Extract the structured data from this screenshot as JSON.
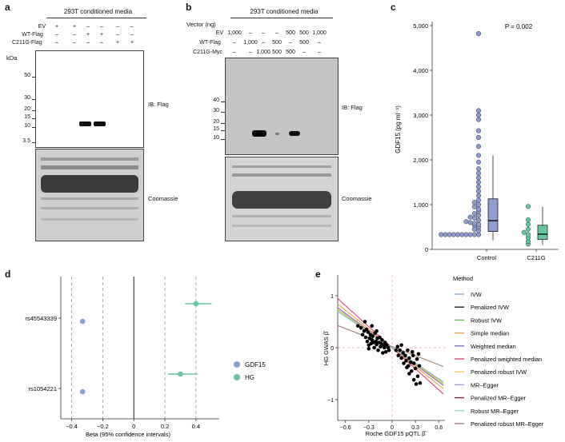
{
  "panels": {
    "a": {
      "label": "a",
      "header": "293T conditioned media",
      "row_labels": [
        "EV",
        "WT-Flag",
        "C211G-Flag"
      ],
      "row_values": [
        [
          "+",
          "+",
          "–",
          "–",
          "–",
          "–"
        ],
        [
          "–",
          "–",
          "+",
          "+",
          "–",
          "–"
        ],
        [
          "–",
          "–",
          "–",
          "–",
          "+",
          "+"
        ]
      ],
      "kda_title": "kDa",
      "kda_ticks": [
        "50",
        "30",
        "20",
        "15",
        "10",
        "3.5"
      ],
      "ib_label": "IB: Flag",
      "stain_label": "Coomassie"
    },
    "b": {
      "label": "b",
      "header": "293T conditioned media",
      "vector_label": "Vector (ng)",
      "row_labels": [
        "EV",
        "WT-Flag",
        "C211G-Myc"
      ],
      "row_values": [
        [
          "1,000",
          "–",
          "–",
          "–",
          "500",
          "500",
          "1,000"
        ],
        [
          "–",
          "1,000",
          "–",
          "500",
          "–",
          "500",
          "–"
        ],
        [
          "–",
          "–",
          "1,000",
          "500",
          "500",
          "–",
          "–"
        ]
      ],
      "kda_ticks": [
        "40",
        "30",
        "20",
        "15",
        "10"
      ],
      "ib_label": "IB: Flag",
      "stain_label": "Coomassie"
    },
    "c": {
      "label": "c",
      "p_value": "P = 0.002",
      "ylabel": "GDF15 (pg ml⁻¹)"
    },
    "d": {
      "label": "d",
      "xlabel": "Beta (95% confidence intervals)",
      "legend": [
        {
          "name": "GDF15",
          "color": "#8e9dd0"
        },
        {
          "name": "HG",
          "color": "#66c8a0"
        }
      ]
    },
    "e": {
      "label": "e",
      "xlabel": "Roche GDF15 pQTL β̂",
      "ylabel": "HG GWAS β̂",
      "legend_title": "Method",
      "methods": [
        {
          "name": "IVW",
          "color": "#7fb1dc"
        },
        {
          "name": "Penalized IVW",
          "color": "#222222"
        },
        {
          "name": "Robust IVW",
          "color": "#66bb55"
        },
        {
          "name": "Simple median",
          "color": "#e8a048"
        },
        {
          "name": "Weighted median",
          "color": "#8c6bbf"
        },
        {
          "name": "Penalized weighted median",
          "color": "#e8407a"
        },
        {
          "name": "Penalized robust IVW",
          "color": "#f0d050"
        },
        {
          "name": "MR–Egger",
          "color": "#9aa6d6"
        },
        {
          "name": "Penalized MR–Egger",
          "color": "#8a2a3a"
        },
        {
          "name": "Robust MR–Egger",
          "color": "#88ddd0"
        },
        {
          "name": "Penalized robust MR–Egger",
          "color": "#a08070"
        }
      ]
    }
  },
  "chart_data": [
    {
      "type": "box",
      "title": "",
      "ylabel": "GDF15 (pg ml⁻¹)",
      "xlabel": "",
      "ylim": [
        0,
        5000
      ],
      "yticks": [
        "0",
        "1,000",
        "2,000",
        "3,000",
        "4,000",
        "5,000"
      ],
      "annotation": "P = 0.002",
      "categories": [
        "Control",
        "C211G"
      ],
      "series": [
        {
          "name": "Control",
          "color": "#8e9dd0",
          "q1": 400,
          "median": 640,
          "q3": 1130,
          "whisker_low": 200,
          "whisker_high": 2100,
          "points": [
            330,
            330,
            330,
            330,
            330,
            330,
            330,
            330,
            330,
            330,
            420,
            450,
            500,
            540,
            560,
            580,
            600,
            620,
            650,
            700,
            720,
            760,
            800,
            850,
            900,
            950,
            1000,
            1050,
            1100,
            1200,
            1300,
            1400,
            1500,
            1600,
            1700,
            1800,
            1950,
            2100,
            2300,
            2500,
            2650,
            2900,
            3000,
            3100,
            4820
          ]
        },
        {
          "name": "C211G",
          "color": "#66c8a0",
          "q1": 220,
          "median": 340,
          "q3": 540,
          "whisker_low": 100,
          "whisker_high": 950,
          "points": [
            120,
            180,
            260,
            330,
            380,
            450,
            560,
            660,
            960
          ]
        }
      ]
    },
    {
      "type": "forest",
      "xlabel": "Beta (95% confidence intervals)",
      "xticks": [
        "−0.4",
        "−0.2",
        "0",
        "0.2",
        "0.4"
      ],
      "xlim": [
        -0.47,
        0.55
      ],
      "categories": [
        "rs45543339",
        "rs1054221"
      ],
      "series": [
        {
          "name": "GDF15",
          "color": "#8e9dd0",
          "values": [
            -0.33,
            -0.33
          ],
          "lower": [
            -0.34,
            -0.34
          ],
          "upper": [
            -0.32,
            -0.32
          ]
        },
        {
          "name": "HG",
          "color": "#66c8a0",
          "values": [
            0.4,
            0.3
          ],
          "lower": [
            0.33,
            0.22
          ],
          "upper": [
            0.5,
            0.41
          ]
        }
      ]
    },
    {
      "type": "scatter",
      "xlabel": "Roche GDF15 pQTL β̂",
      "ylabel": "HG GWAS β̂",
      "xlim": [
        -0.7,
        0.68
      ],
      "ylim": [
        -1.4,
        1.4
      ],
      "xticks": [
        -0.6,
        -0.3,
        0,
        0.3,
        0.6
      ],
      "yticks": [
        -1,
        0,
        1
      ],
      "points": [
        [
          -0.44,
          0.42
        ],
        [
          -0.38,
          0.25
        ],
        [
          -0.36,
          0.32
        ],
        [
          -0.34,
          0.2
        ],
        [
          -0.32,
          0.12
        ],
        [
          -0.31,
          0.3
        ],
        [
          -0.3,
          0.05
        ],
        [
          -0.29,
          0.18
        ],
        [
          -0.28,
          0.25
        ],
        [
          -0.27,
          0.08
        ],
        [
          -0.26,
          0.15
        ],
        [
          -0.25,
          0.22
        ],
        [
          -0.24,
          0.1
        ],
        [
          -0.23,
          0.0
        ],
        [
          -0.22,
          0.28
        ],
        [
          -0.21,
          0.12
        ],
        [
          -0.2,
          0.06
        ],
        [
          -0.19,
          0.18
        ],
        [
          -0.18,
          -0.05
        ],
        [
          -0.17,
          0.1
        ],
        [
          -0.16,
          0.2
        ],
        [
          -0.15,
          0.02
        ],
        [
          -0.14,
          0.08
        ],
        [
          -0.13,
          0.15
        ],
        [
          -0.12,
          -0.1
        ],
        [
          -0.11,
          0.04
        ],
        [
          -0.1,
          0.0
        ],
        [
          -0.09,
          0.1
        ],
        [
          -0.08,
          -0.08
        ],
        [
          -0.07,
          0.05
        ],
        [
          -0.05,
          0.0
        ],
        [
          -0.04,
          -0.05
        ],
        [
          -0.33,
          0.35
        ],
        [
          -0.35,
          0.5
        ],
        [
          -0.4,
          0.38
        ],
        [
          -0.3,
          -0.02
        ],
        [
          -0.26,
          0.42
        ],
        [
          -0.2,
          0.32
        ],
        [
          0.05,
          -0.05
        ],
        [
          0.08,
          -0.15
        ],
        [
          0.1,
          -0.05
        ],
        [
          0.12,
          -0.2
        ],
        [
          0.14,
          -0.1
        ],
        [
          0.15,
          -0.3
        ],
        [
          0.17,
          -0.15
        ],
        [
          0.18,
          -0.25
        ],
        [
          0.2,
          -0.05
        ],
        [
          0.21,
          -0.35
        ],
        [
          0.22,
          -0.2
        ],
        [
          0.24,
          -0.28
        ],
        [
          0.25,
          -0.45
        ],
        [
          0.27,
          -0.15
        ],
        [
          0.28,
          -0.3
        ],
        [
          0.3,
          -0.4
        ],
        [
          0.32,
          -0.22
        ],
        [
          0.33,
          -0.55
        ],
        [
          0.35,
          -0.35
        ],
        [
          0.28,
          -0.62
        ],
        [
          0.31,
          -0.7
        ],
        [
          0.36,
          -0.68
        ],
        [
          0.22,
          -0.5
        ],
        [
          0.19,
          -0.38
        ],
        [
          0.26,
          -0.08
        ],
        [
          0.12,
          0.05
        ],
        [
          0.07,
          0.02
        ],
        [
          0.34,
          -0.12
        ]
      ],
      "lines": [
        {
          "method": "IVW",
          "slope": -1.05,
          "intercept": 0
        },
        {
          "method": "Penalized IVW",
          "slope": -1.05,
          "intercept": 0
        },
        {
          "method": "Robust IVW",
          "slope": -1.05,
          "intercept": 0
        },
        {
          "method": "Simple median",
          "slope": -1.2,
          "intercept": 0
        },
        {
          "method": "Weighted median",
          "slope": -1.1,
          "intercept": 0
        },
        {
          "method": "Penalized weighted median",
          "slope": -1.35,
          "intercept": 0
        },
        {
          "method": "Penalized robust IVW",
          "slope": -1.05,
          "intercept": 0
        },
        {
          "method": "MR–Egger",
          "slope": -1.0,
          "intercept": 0.0
        },
        {
          "method": "Penalized MR–Egger",
          "slope": -1.0,
          "intercept": 0.0
        },
        {
          "method": "Robust MR–Egger",
          "slope": -1.0,
          "intercept": 0.0
        },
        {
          "method": "Penalized robust MR–Egger",
          "slope": -0.58,
          "intercept": 0.02
        }
      ]
    }
  ]
}
